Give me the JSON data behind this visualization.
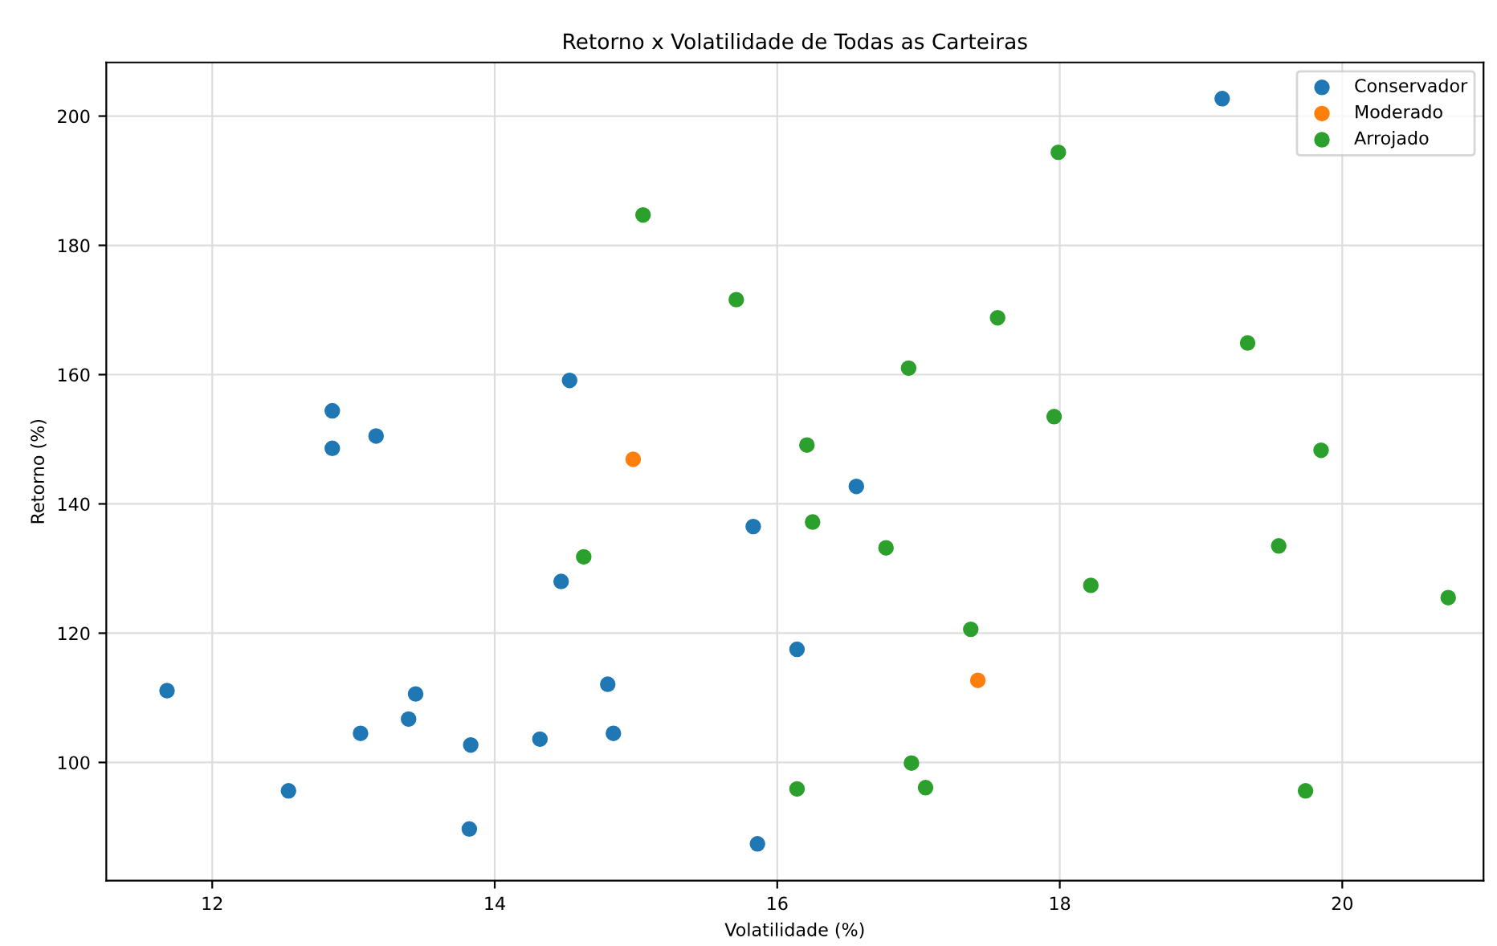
{
  "chart_data": {
    "type": "scatter",
    "title": "Retorno x Volatilidade de Todas as Carteiras",
    "xlabel": "Volatilidade (%)",
    "ylabel": "Retorno (%)",
    "xlim": [
      11.25,
      21.0
    ],
    "ylim": [
      81.7,
      208.3
    ],
    "xticks": [
      12,
      14,
      16,
      18,
      20
    ],
    "yticks": [
      100,
      120,
      140,
      160,
      180,
      200
    ],
    "grid": true,
    "legend": "top right",
    "marker": "circle",
    "series": [
      {
        "name": "Conservador",
        "color": "#1f77b4",
        "x": [
          19.15,
          14.53,
          12.85,
          12.85,
          13.16,
          16.56,
          15.83,
          14.47,
          11.68,
          13.44,
          13.39,
          13.05,
          13.83,
          14.32,
          14.8,
          14.84,
          12.54,
          13.82,
          16.14,
          15.86
        ],
        "values": [
          202.7,
          159.1,
          154.4,
          148.6,
          150.5,
          142.7,
          136.5,
          128.0,
          111.1,
          110.6,
          106.7,
          104.5,
          102.7,
          103.6,
          112.1,
          104.5,
          95.6,
          89.7,
          117.5,
          87.4
        ]
      },
      {
        "name": "Moderado",
        "color": "#ff7f0e",
        "x": [
          14.98,
          17.42
        ],
        "values": [
          146.9,
          112.7
        ]
      },
      {
        "name": "Arrojado",
        "color": "#2ca02c",
        "x": [
          15.05,
          15.71,
          17.99,
          17.56,
          19.33,
          16.93,
          17.96,
          16.21,
          19.85,
          14.63,
          16.25,
          16.77,
          19.55,
          18.22,
          20.75,
          17.37,
          16.95,
          16.14,
          17.05,
          19.74
        ],
        "values": [
          184.7,
          171.6,
          194.4,
          168.8,
          164.9,
          161.0,
          153.5,
          149.1,
          148.3,
          131.8,
          137.2,
          133.2,
          133.5,
          127.4,
          125.5,
          120.6,
          99.9,
          95.9,
          96.1,
          95.6
        ]
      }
    ]
  }
}
